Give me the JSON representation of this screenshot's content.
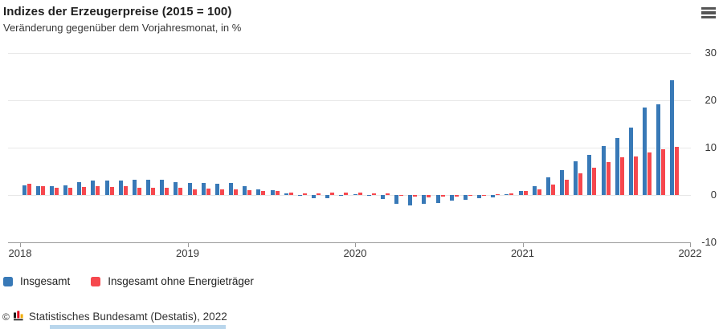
{
  "header": {
    "title": "Indizes der Erzeugerpreise (2015 = 100)",
    "subtitle": "Veränderung gegenüber dem Vorjahresmonat, in %"
  },
  "toolbar": {
    "menu_icon": "hamburger-menu"
  },
  "chart_data": {
    "type": "bar",
    "title": "Indizes der Erzeugerpreise (2015 = 100)",
    "subtitle": "Veränderung gegenüber dem Vorjahresmonat, in %",
    "unit": "%",
    "x_years": [
      "2018",
      "2019",
      "2020",
      "2021"
    ],
    "x_tick_labels": [
      "2018",
      "2019",
      "2020",
      "2021",
      "2022"
    ],
    "y_ticks": [
      30,
      20,
      10,
      0,
      -10
    ],
    "ylim": [
      -10,
      30
    ],
    "grid": true,
    "legend_position": "bottom-left",
    "series": [
      {
        "name": "Insgesamt",
        "color": "#3879b7",
        "values": {
          "2018": [
            2.1,
            1.8,
            1.9,
            2.0,
            2.7,
            3.0,
            3.0,
            3.1,
            3.2,
            3.3,
            3.3,
            2.7
          ],
          "2019": [
            2.6,
            2.6,
            2.4,
            2.5,
            1.9,
            1.2,
            1.1,
            0.3,
            -0.1,
            -0.6,
            -0.7,
            -0.2
          ],
          "2020": [
            0.2,
            -0.1,
            -0.8,
            -1.9,
            -2.2,
            -1.8,
            -1.7,
            -1.2,
            -1.0,
            -0.7,
            -0.5,
            0.2
          ],
          "2021": [
            0.9,
            1.9,
            3.7,
            5.2,
            7.2,
            8.5,
            10.4,
            12.0,
            14.2,
            18.4,
            19.2,
            24.2
          ]
        }
      },
      {
        "name": "Insgesamt ohne Energieträger",
        "color": "#f6484e",
        "values": {
          "2018": [
            2.4,
            1.9,
            1.5,
            1.5,
            1.7,
            1.8,
            1.7,
            1.8,
            1.5,
            1.6,
            1.5,
            1.6
          ],
          "2019": [
            1.2,
            1.3,
            1.2,
            1.2,
            1.0,
            0.8,
            0.8,
            0.5,
            0.4,
            0.4,
            0.5,
            0.5
          ],
          "2020": [
            0.5,
            0.4,
            0.3,
            -0.2,
            -0.4,
            -0.5,
            -0.4,
            -0.3,
            -0.2,
            -0.1,
            0.2,
            0.4
          ],
          "2021": [
            0.8,
            1.2,
            2.2,
            3.3,
            4.6,
            5.7,
            7.0,
            8.0,
            8.2,
            9.0,
            9.6,
            10.2
          ]
        }
      }
    ]
  },
  "legend": {
    "items": [
      {
        "label": "Insgesamt",
        "color": "#3879b7"
      },
      {
        "label": "Insgesamt ohne Energieträger",
        "color": "#f6484e"
      }
    ]
  },
  "footer": {
    "copyright_symbol": "©",
    "source": "Statistisches Bundesamt (Destatis), 2022",
    "logo": "destatis-chart-icon"
  }
}
